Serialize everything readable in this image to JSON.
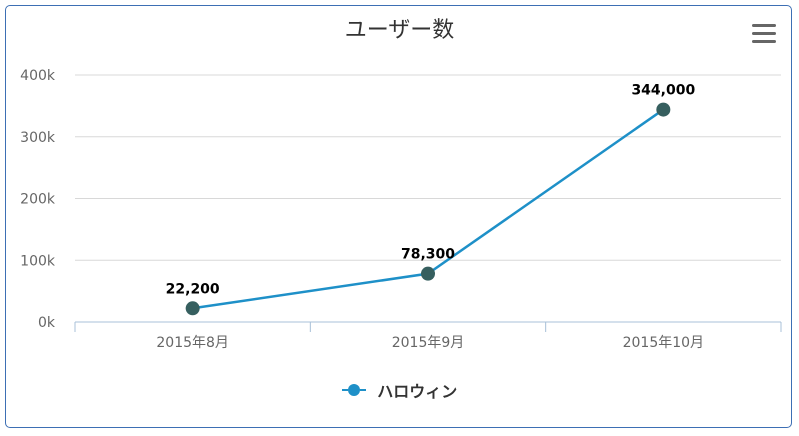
{
  "chart_data": {
    "type": "line",
    "title": "ユーザー数",
    "categories": [
      "2015年8月",
      "2015年9月",
      "2015年10月"
    ],
    "series": [
      {
        "name": "ハロウィン",
        "values": [
          22200,
          78300,
          344000
        ],
        "color": "#1e90c8",
        "marker_color": "#365f5f"
      }
    ],
    "data_labels": [
      "22,200",
      "78,300",
      "344,000"
    ],
    "y_ticks": [
      "0k",
      "100k",
      "200k",
      "300k",
      "400k"
    ],
    "ylim": [
      0,
      400000
    ],
    "grid": true,
    "legend_position": "bottom-center"
  },
  "toolbar": {
    "menu_icon": "hamburger-menu-icon"
  }
}
